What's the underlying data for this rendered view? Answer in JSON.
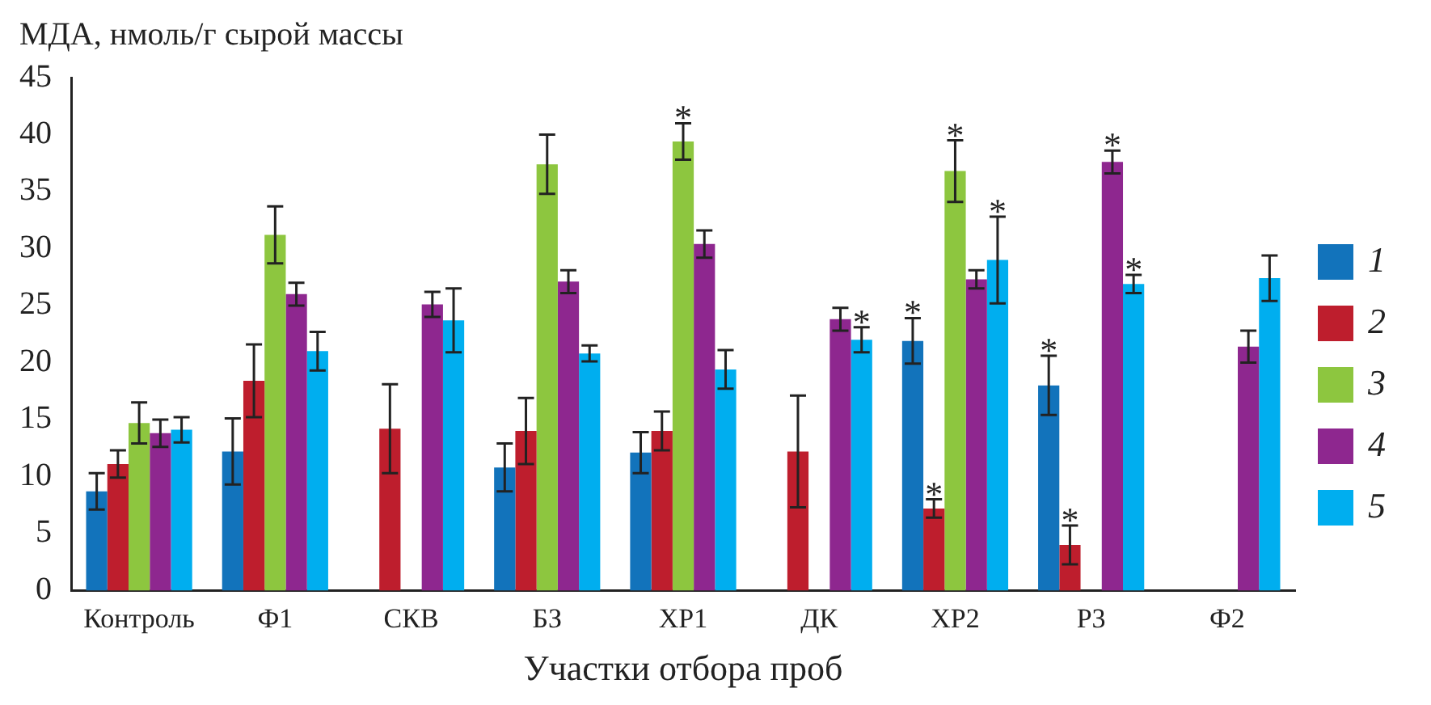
{
  "chart_data": {
    "type": "bar",
    "ylabel": "МДА, нмоль/г сырой массы",
    "xlabel": "Участки отбора проб",
    "categories": [
      "Контроль",
      "Ф1",
      "СКВ",
      "БЗ",
      "ХР1",
      "ДК",
      "ХР2",
      "Р3",
      "Ф2"
    ],
    "series": [
      {
        "name": "1",
        "color": "#1273bb",
        "values": [
          8.7,
          12.2,
          null,
          10.8,
          12.1,
          null,
          21.9,
          18,
          null
        ],
        "errors": [
          1.6,
          2.9,
          null,
          2.1,
          1.8,
          null,
          2.0,
          2.6,
          null
        ],
        "value_labels": [
          null,
          null,
          null,
          null,
          null,
          null,
          "*",
          "*",
          null
        ]
      },
      {
        "name": "2",
        "color": "#be1e2d",
        "values": [
          11.1,
          18.4,
          14.2,
          14,
          14,
          12.2,
          7.2,
          4,
          null
        ],
        "errors": [
          1.2,
          3.2,
          3.9,
          2.9,
          1.7,
          4.9,
          0.8,
          1.7,
          null
        ],
        "value_labels": [
          null,
          null,
          null,
          null,
          null,
          null,
          "*",
          "*",
          null
        ]
      },
      {
        "name": "3",
        "color": "#8dc63f",
        "values": [
          14.7,
          31.2,
          null,
          37.4,
          39.4,
          null,
          36.8,
          null,
          null
        ],
        "errors": [
          1.8,
          2.5,
          null,
          2.6,
          1.6,
          null,
          2.7,
          null,
          null
        ],
        "value_labels": [
          null,
          null,
          null,
          null,
          "*",
          null,
          "*",
          null,
          null
        ]
      },
      {
        "name": "4",
        "color": "#8e278f",
        "values": [
          13.8,
          26,
          25.1,
          27.1,
          30.4,
          23.8,
          27.3,
          37.6,
          21.4
        ],
        "errors": [
          1.2,
          1.0,
          1.1,
          1.0,
          1.2,
          1.0,
          0.8,
          1.0,
          1.4
        ],
        "value_labels": [
          null,
          null,
          null,
          null,
          null,
          null,
          null,
          "*",
          null
        ]
      },
      {
        "name": "5",
        "color": "#00aeef",
        "values": [
          14.1,
          21,
          23.7,
          20.8,
          19.4,
          22,
          29,
          26.9,
          27.4
        ],
        "errors": [
          1.1,
          1.7,
          2.8,
          0.7,
          1.7,
          1.1,
          3.8,
          0.8,
          2.0
        ],
        "value_labels": [
          null,
          null,
          null,
          null,
          null,
          "*",
          "*",
          "*",
          null
        ]
      }
    ],
    "ylim": [
      0,
      45
    ],
    "yticks": [
      0,
      5,
      10,
      15,
      20,
      25,
      30,
      35,
      40,
      45
    ],
    "grid": false,
    "legend": "right"
  }
}
